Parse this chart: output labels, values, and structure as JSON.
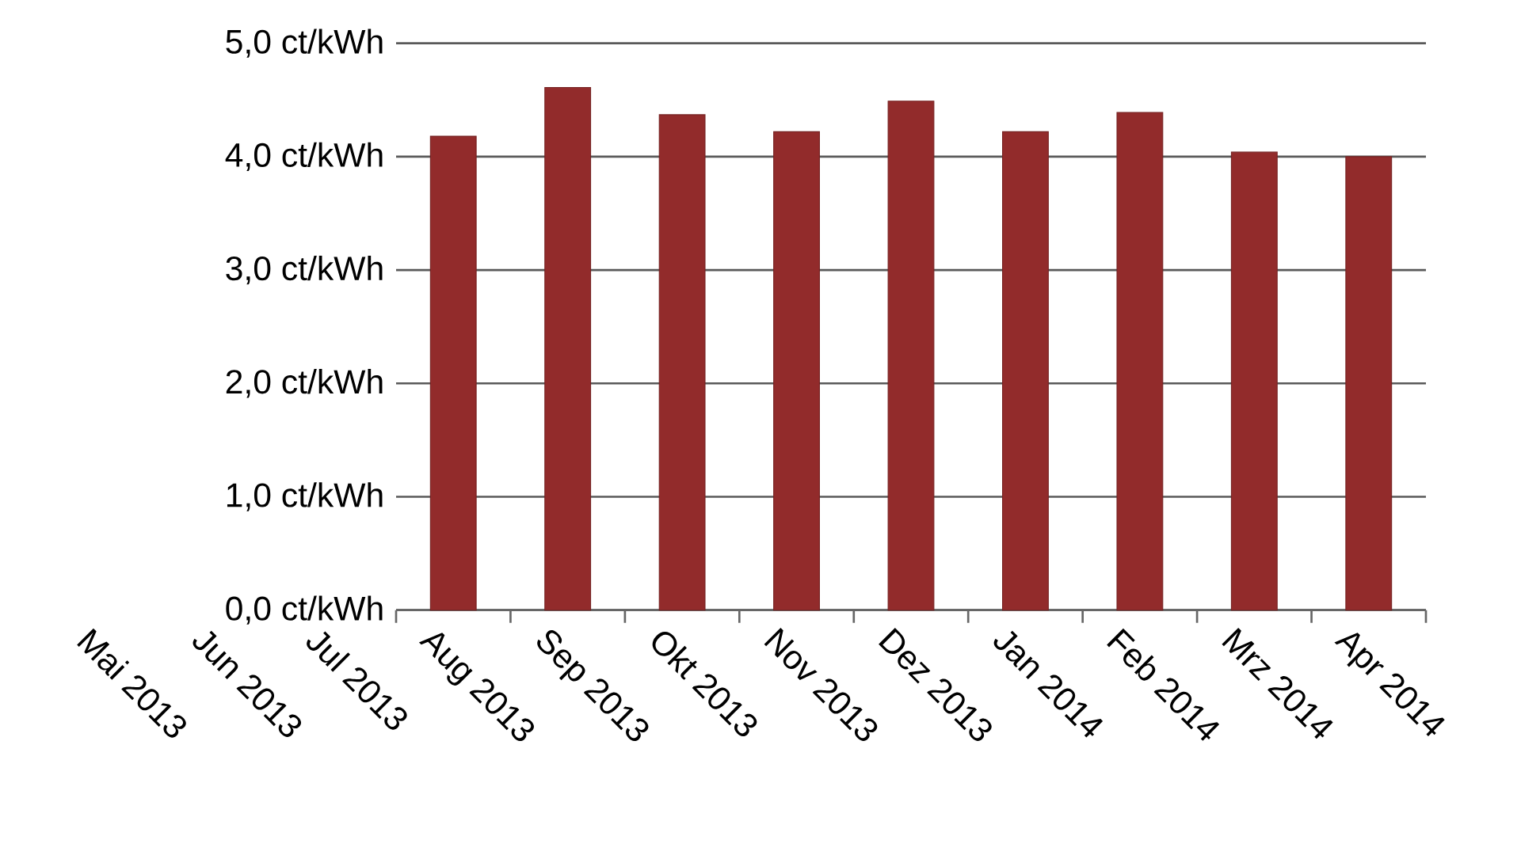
{
  "chart_data": {
    "type": "bar",
    "categories": [
      "Mai 2013",
      "Jun 2013",
      "Jul 2013",
      "Aug 2013",
      "Sep 2013",
      "Okt 2013",
      "Nov 2013",
      "Dez 2013",
      "Jan 2014",
      "Feb 2014",
      "Mrz 2014",
      "Apr 2014"
    ],
    "values": [
      null,
      null,
      null,
      4.18,
      4.61,
      4.37,
      4.22,
      4.49,
      4.22,
      4.39,
      4.04,
      4.0
    ],
    "color": "#922b2b",
    "ylim": [
      0,
      5
    ],
    "yticks": [
      {
        "value": 0,
        "label": "0,0 ct/kWh"
      },
      {
        "value": 1,
        "label": "1,0 ct/kWh"
      },
      {
        "value": 2,
        "label": "2,0 ct/kWh"
      },
      {
        "value": 3,
        "label": "3,0 ct/kWh"
      },
      {
        "value": 4,
        "label": "4,0 ct/kWh"
      },
      {
        "value": 5,
        "label": "5,0 ct/kWh"
      }
    ],
    "grid": "y"
  }
}
